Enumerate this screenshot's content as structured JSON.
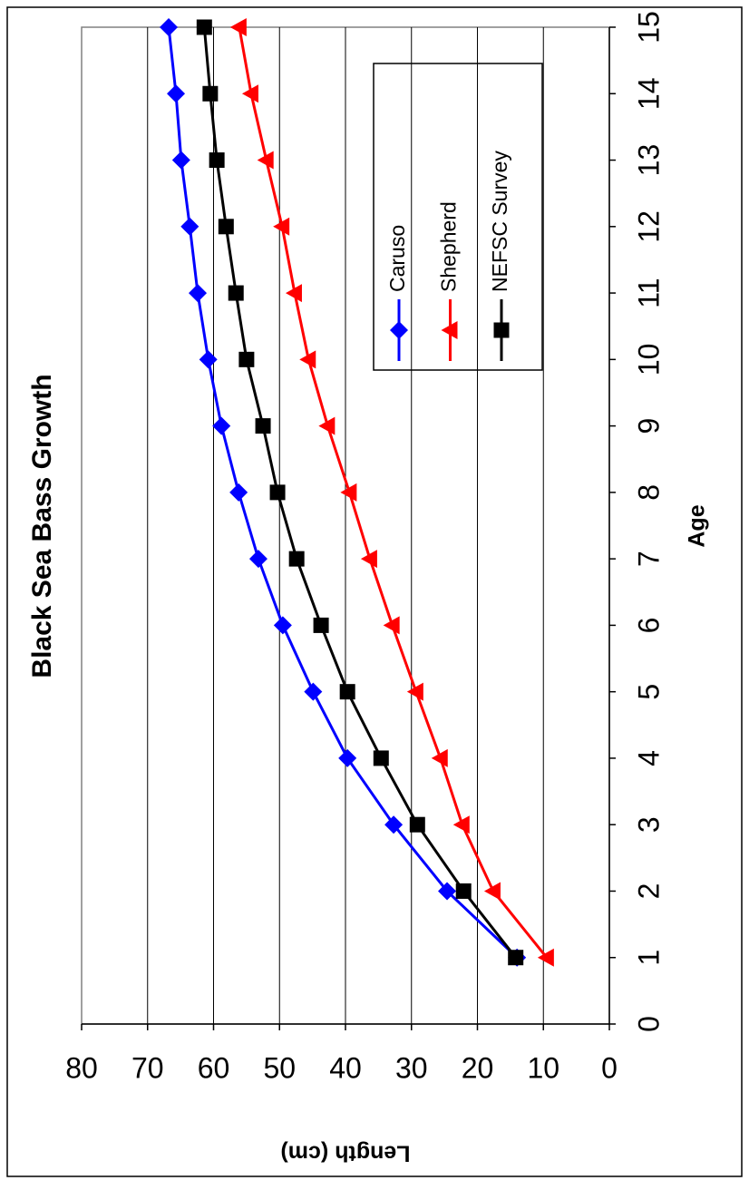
{
  "chart_data": {
    "type": "line",
    "title": "Black Sea Bass Growth",
    "x_label": "Age",
    "y_label": "Length (cm)",
    "x": [
      1,
      2,
      3,
      4,
      5,
      6,
      7,
      8,
      9,
      10,
      11,
      12,
      13,
      14,
      15
    ],
    "series": [
      {
        "name": "Caruso",
        "color": "#0000ff",
        "marker": "diamond",
        "values": [
          14.0,
          24.6,
          32.7,
          39.7,
          44.9,
          49.5,
          53.2,
          56.2,
          58.8,
          60.8,
          62.4,
          63.6,
          64.9,
          65.7,
          66.8
        ]
      },
      {
        "name": "Shepherd",
        "color": "#ff0000",
        "marker": "triangle",
        "values": [
          9.5,
          17.6,
          22.3,
          25.6,
          29.3,
          32.9,
          36.3,
          39.4,
          42.7,
          45.6,
          47.7,
          49.6,
          52.0,
          54.3,
          56.1
        ]
      },
      {
        "name": "NEFSC Survey",
        "color": "#000000",
        "marker": "square",
        "values": [
          14.2,
          22.1,
          29.1,
          34.6,
          39.7,
          43.7,
          47.4,
          50.3,
          52.5,
          55.0,
          56.6,
          58.1,
          59.5,
          60.5,
          61.4
        ]
      }
    ],
    "xlim": [
      0,
      15
    ],
    "xticks": [
      0,
      1,
      2,
      3,
      4,
      5,
      6,
      7,
      8,
      9,
      10,
      11,
      12,
      13,
      14,
      15
    ],
    "ylim": [
      0,
      80
    ],
    "yticks": [
      0,
      10,
      20,
      30,
      40,
      50,
      60,
      70,
      80
    ],
    "grid": true,
    "rotation": -90
  }
}
